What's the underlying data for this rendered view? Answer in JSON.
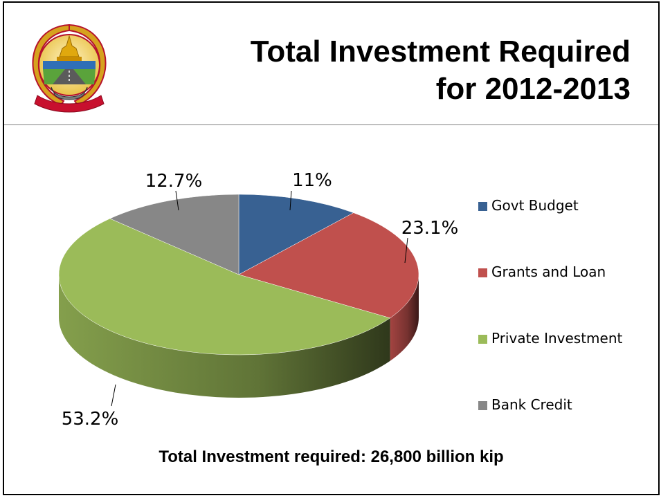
{
  "slide": {
    "title_line1": "Total Investment Required",
    "title_line2": "for 2012-2013",
    "footer": "Total Investment required: 26,800 billion kip"
  },
  "emblem": {
    "icon": "national-emblem-icon"
  },
  "chart_data": {
    "type": "pie",
    "style": "3d",
    "categories": [
      "Govt Budget",
      "Grants and Loan",
      "Private Investment",
      "Bank Credit"
    ],
    "values": [
      11,
      23.1,
      53.2,
      12.7
    ],
    "labels": [
      "11%",
      "23.1%",
      "53.2%",
      "12.7%"
    ],
    "colors": [
      "#386192",
      "#c0504d",
      "#9bbb59",
      "#878787"
    ],
    "legend_position": "right"
  }
}
